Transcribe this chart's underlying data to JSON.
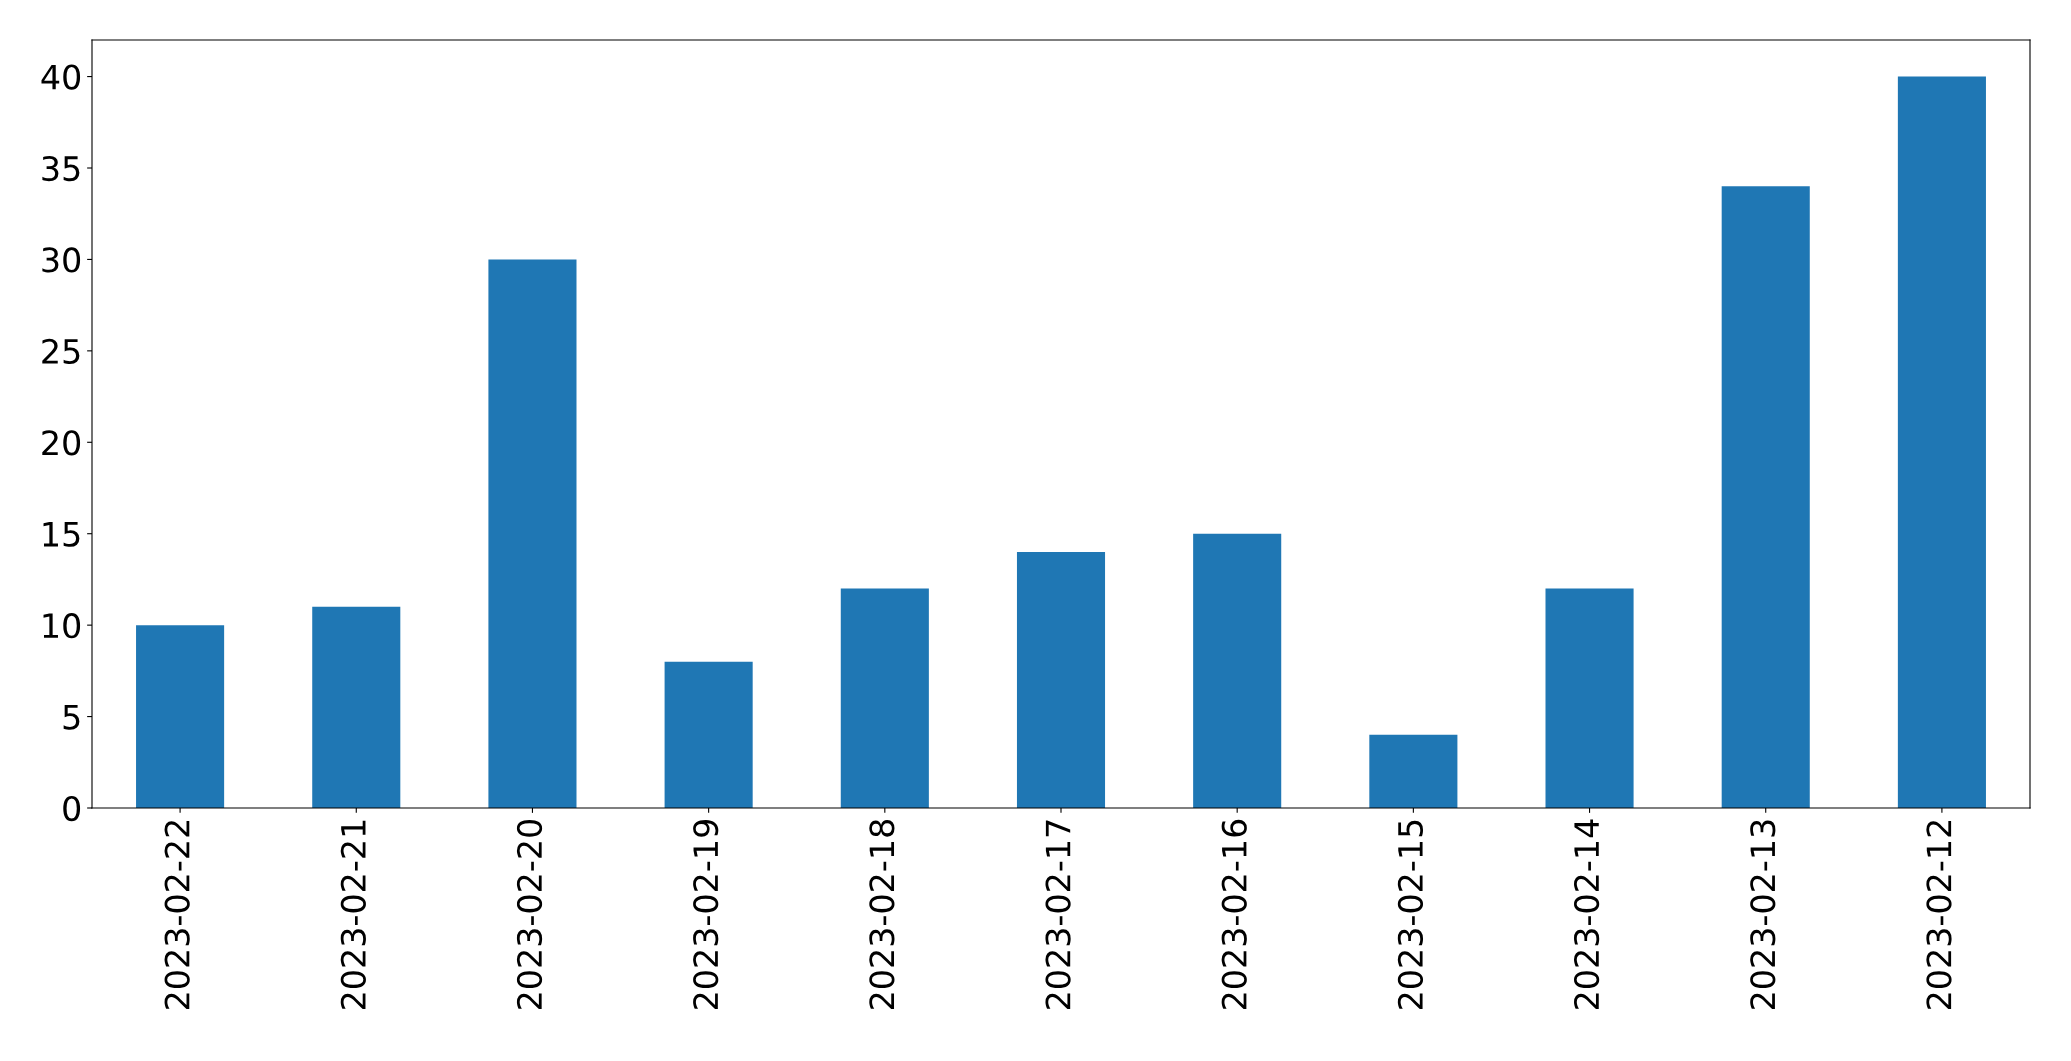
{
  "chart_data": {
    "type": "bar",
    "categories": [
      "2023-02-22",
      "2023-02-21",
      "2023-02-20",
      "2023-02-19",
      "2023-02-18",
      "2023-02-17",
      "2023-02-16",
      "2023-02-15",
      "2023-02-14",
      "2023-02-13",
      "2023-02-12"
    ],
    "values": [
      10,
      11,
      30,
      8,
      12,
      14,
      15,
      4,
      12,
      34,
      40
    ],
    "color": "#1f77b4",
    "ylim": [
      0,
      42
    ],
    "yticks": [
      0,
      5,
      10,
      15,
      20,
      25,
      30,
      35,
      40
    ],
    "grid": false,
    "legend": false
  }
}
